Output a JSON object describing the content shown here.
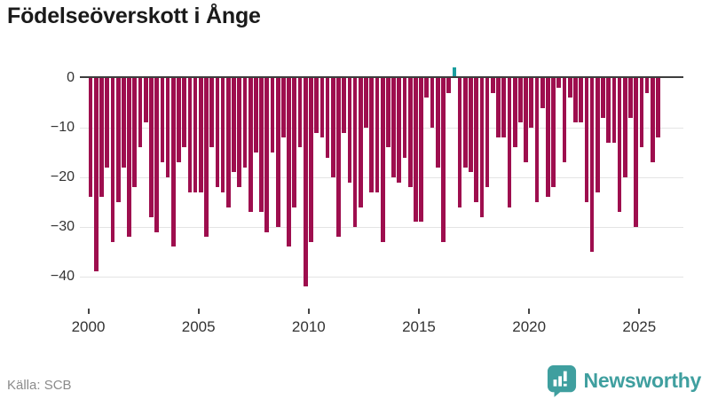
{
  "title": "Födelseöverskott i Ånge",
  "source": "Källa: SCB",
  "branding": {
    "name": "Newsworthy",
    "icon": "newsworthy-speech-bubble-bar-chart-icon"
  },
  "colors": {
    "bar_negative": "#9e0e4e",
    "bar_positive": "#1a9e9e",
    "axis_line": "#3d3d3d",
    "gridline": "#e4e4e4",
    "tick_text": "#333333",
    "source_text": "#8b8b8b",
    "brand_teal": "#3f9f9f"
  },
  "chart_data": {
    "type": "bar",
    "title": "Födelseöverskott i Ånge",
    "xlabel": "",
    "ylabel": "",
    "ylim": [
      -45,
      3
    ],
    "y_ticks": [
      0,
      -10,
      -20,
      -30,
      -40
    ],
    "y_tick_labels": [
      "0",
      "−10",
      "−20",
      "−30",
      "−40"
    ],
    "x_ticks": [
      2000,
      2005,
      2010,
      2015,
      2020,
      2025
    ],
    "x_tick_labels": [
      "2000",
      "2005",
      "2010",
      "2015",
      "2020",
      "2025"
    ],
    "grid": "horizontal",
    "legend_position": "none",
    "period": "quarterly",
    "categories": [
      "2000Q1",
      "2000Q2",
      "2000Q3",
      "2000Q4",
      "2001Q1",
      "2001Q2",
      "2001Q3",
      "2001Q4",
      "2002Q1",
      "2002Q2",
      "2002Q3",
      "2002Q4",
      "2003Q1",
      "2003Q2",
      "2003Q3",
      "2003Q4",
      "2004Q1",
      "2004Q2",
      "2004Q3",
      "2004Q4",
      "2005Q1",
      "2005Q2",
      "2005Q3",
      "2005Q4",
      "2006Q1",
      "2006Q2",
      "2006Q3",
      "2006Q4",
      "2007Q1",
      "2007Q2",
      "2007Q3",
      "2007Q4",
      "2008Q1",
      "2008Q2",
      "2008Q3",
      "2008Q4",
      "2009Q1",
      "2009Q2",
      "2009Q3",
      "2009Q4",
      "2010Q1",
      "2010Q2",
      "2010Q3",
      "2010Q4",
      "2011Q1",
      "2011Q2",
      "2011Q3",
      "2011Q4",
      "2012Q1",
      "2012Q2",
      "2012Q3",
      "2012Q4",
      "2013Q1",
      "2013Q2",
      "2013Q3",
      "2013Q4",
      "2014Q1",
      "2014Q2",
      "2014Q3",
      "2014Q4",
      "2015Q1",
      "2015Q2",
      "2015Q3",
      "2015Q4",
      "2016Q1",
      "2016Q2",
      "2016Q3",
      "2016Q4",
      "2017Q1",
      "2017Q2",
      "2017Q3",
      "2017Q4",
      "2018Q1",
      "2018Q2",
      "2018Q3",
      "2018Q4",
      "2019Q1",
      "2019Q2",
      "2019Q3",
      "2019Q4",
      "2020Q1",
      "2020Q2",
      "2020Q3",
      "2020Q4",
      "2021Q1",
      "2021Q2",
      "2021Q3",
      "2021Q4",
      "2022Q1",
      "2022Q2",
      "2022Q3",
      "2022Q4",
      "2023Q1",
      "2023Q2",
      "2023Q3",
      "2023Q4",
      "2024Q1",
      "2024Q2",
      "2024Q3",
      "2024Q4",
      "2025Q1",
      "2025Q2",
      "2025Q3",
      "2025Q4"
    ],
    "values": [
      -24,
      -39,
      -24,
      -18,
      -33,
      -25,
      -18,
      -32,
      -22,
      -14,
      -9,
      -28,
      -31,
      -17,
      -20,
      -34,
      -17,
      -14,
      -23,
      -23,
      -23,
      -32,
      -14,
      -22,
      -23,
      -26,
      -19,
      -22,
      -18,
      -27,
      -15,
      -27,
      -31,
      -15,
      -30,
      -12,
      -34,
      -26,
      -14,
      -42,
      -33,
      -11,
      -12,
      -16,
      -20,
      -32,
      -11,
      -21,
      -30,
      -26,
      -10,
      -23,
      -23,
      -33,
      -14,
      -20,
      -21,
      -16,
      -22,
      -29,
      -29,
      -4,
      -10,
      -18,
      -33,
      -3,
      2,
      -26,
      -18,
      -19,
      -25,
      -28,
      -22,
      -3,
      -12,
      -12,
      -26,
      -14,
      -9,
      -17,
      -10,
      -25,
      -6,
      -24,
      -22,
      -2,
      -17,
      -4,
      -9,
      -9,
      -25,
      -35,
      -23,
      -8,
      -13,
      -13,
      -27,
      -20,
      -8,
      -30,
      -14,
      -3,
      -17,
      -12
    ]
  }
}
